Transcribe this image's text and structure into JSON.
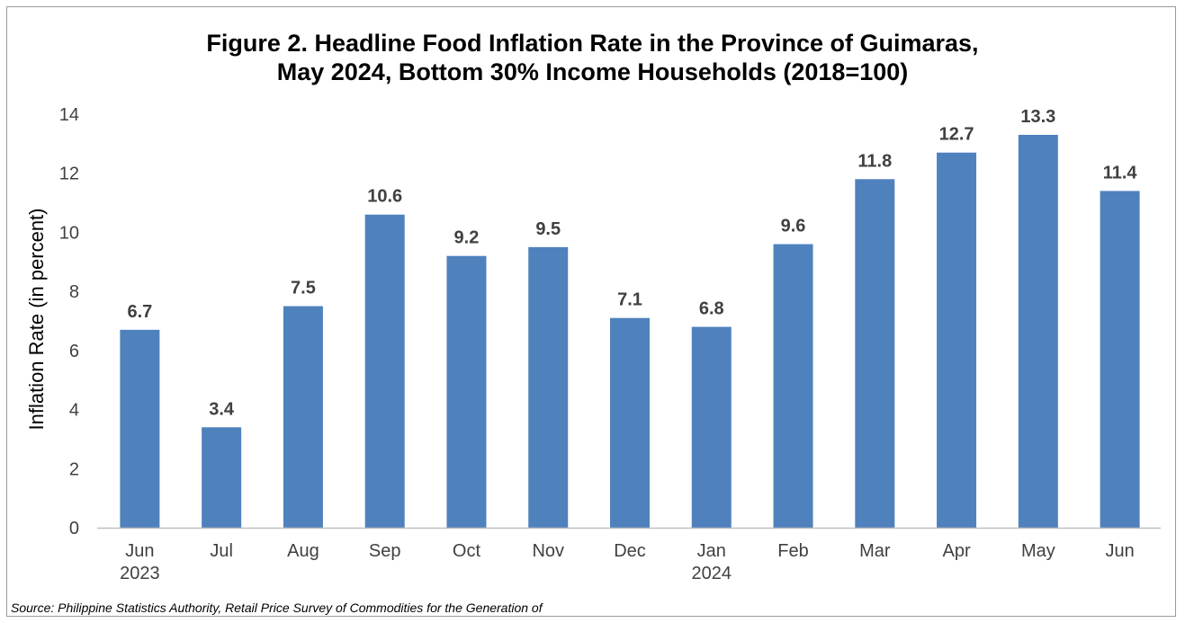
{
  "chart_data": {
    "type": "bar",
    "title": [
      "Figure 2. Headline Food Inflation Rate in the Province of Guimaras,",
      "May 2024, Bottom 30% Income Households (2018=100)"
    ],
    "ylabel": "Inflation Rate (in percent)",
    "xlabel": "",
    "ylim": [
      0,
      14
    ],
    "yticks": [
      0,
      2,
      4,
      6,
      8,
      10,
      12,
      14
    ],
    "grid": false,
    "categories": [
      [
        "Jun",
        "2023"
      ],
      [
        "Jul"
      ],
      [
        "Aug"
      ],
      [
        "Sep"
      ],
      [
        "Oct"
      ],
      [
        "Nov"
      ],
      [
        "Dec"
      ],
      [
        "Jan",
        "2024"
      ],
      [
        "Feb"
      ],
      [
        "Mar"
      ],
      [
        "Apr"
      ],
      [
        "May"
      ],
      [
        "Jun"
      ]
    ],
    "values": [
      6.7,
      3.4,
      7.5,
      10.6,
      9.2,
      9.5,
      7.1,
      6.8,
      9.6,
      11.8,
      12.7,
      13.3,
      11.4
    ],
    "data_labels": [
      "6.7",
      "3.4",
      "7.5",
      "10.6",
      "9.2",
      "9.5",
      "7.1",
      "6.8",
      "9.6",
      "11.8",
      "12.7",
      "13.3",
      "11.4"
    ],
    "bar_color": "#4f81bd",
    "axis_color": "#bfbfbf"
  },
  "source": "Source: Philippine Statistics Authority, Retail Price Survey of Commodities for the Generation of"
}
